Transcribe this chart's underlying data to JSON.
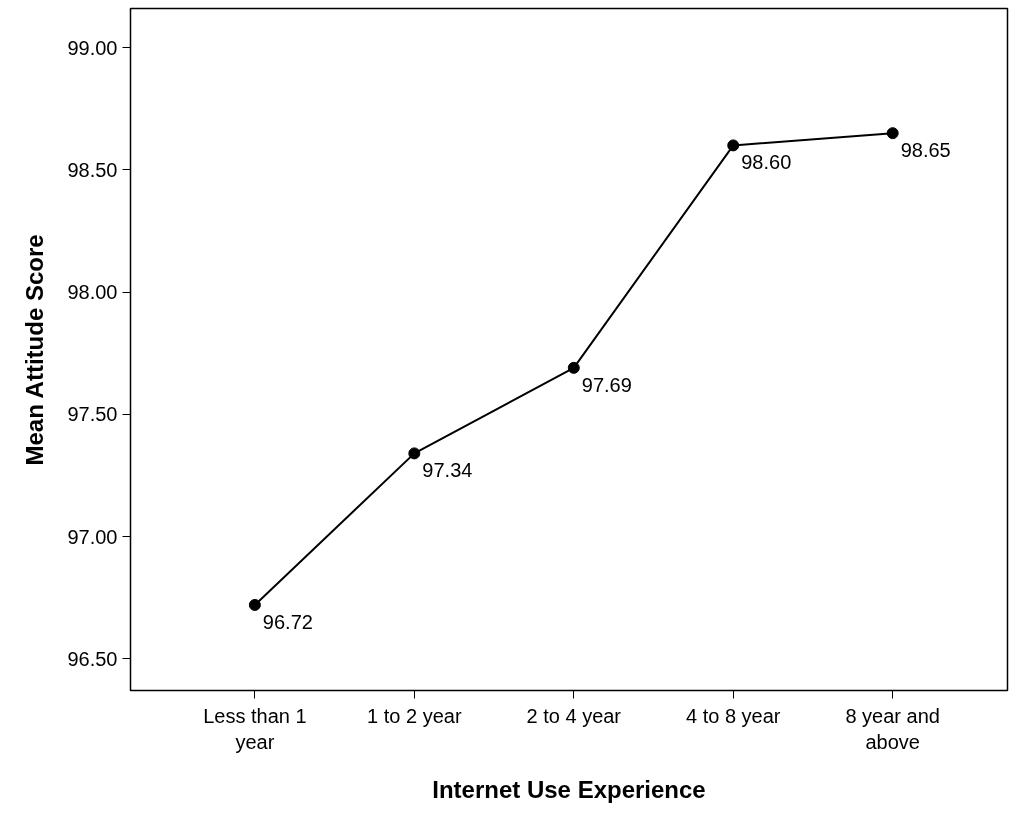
{
  "chart_data": {
    "type": "line",
    "xlabel": "Internet Use Experience",
    "ylabel": "Mean Attitude Score",
    "categories": [
      "Less than 1 year",
      "1 to 2 year",
      "2 to 4 year",
      "4 to 8 year",
      "8 year and above"
    ],
    "series": [
      {
        "color": "#000000",
        "values": [
          96.72,
          97.34,
          97.69,
          98.6,
          98.65
        ],
        "value_labels": [
          "96.72",
          "97.34",
          "97.69",
          "98.60",
          "98.65"
        ]
      }
    ],
    "ylim": [
      96.37,
      99.16
    ],
    "yticks": [
      {
        "value": 96.5,
        "label": "96.50"
      },
      {
        "value": 97.0,
        "label": "97.00"
      },
      {
        "value": 97.5,
        "label": "97.50"
      },
      {
        "value": 98.0,
        "label": "98.00"
      },
      {
        "value": 98.5,
        "label": "98.50"
      },
      {
        "value": 99.0,
        "label": "99.00"
      }
    ],
    "grid": false,
    "marker": "circle",
    "line_style": "solid"
  }
}
